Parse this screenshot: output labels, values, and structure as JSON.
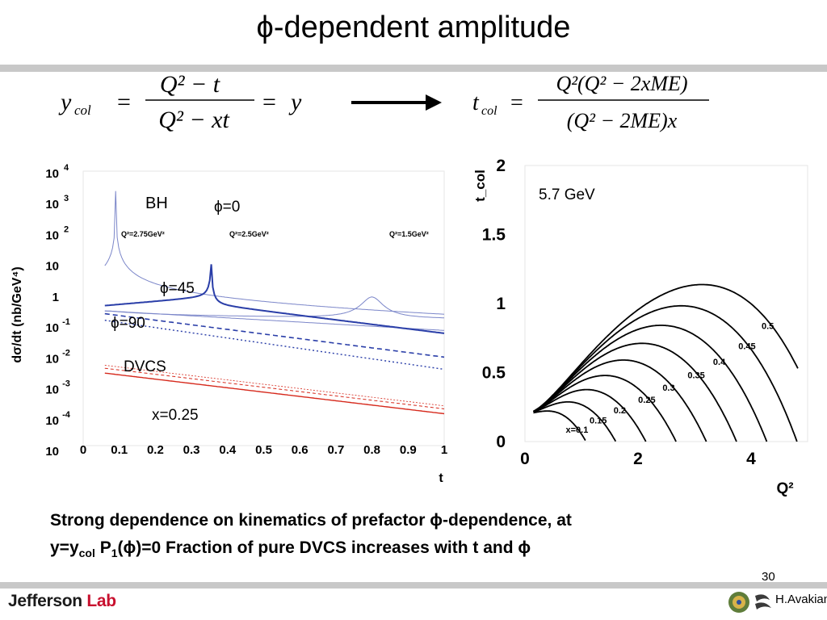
{
  "title": "ϕ-dependent amplitude",
  "equations": {
    "left": {
      "lhs": "y",
      "lhs_sub": "col",
      "num": "Q² − t",
      "den": "Q² − xt",
      "rhs": "y"
    },
    "right": {
      "lhs": "t",
      "lhs_sub": "col",
      "num": "Q²(Q² − 2xME)",
      "den": "(Q² − 2ME)x"
    }
  },
  "chart_data": [
    {
      "type": "line",
      "xlabel": "t",
      "ylabel": "dσ/dt (nb/GeV⁴)",
      "xlim": [
        0,
        1
      ],
      "ylim": [
        0.0001,
        10000
      ],
      "yscale": "log",
      "xticks": [
        "0",
        "0.1",
        "0.2",
        "0.3",
        "0.4",
        "0.5",
        "0.6",
        "0.7",
        "0.8",
        "0.9",
        "1"
      ],
      "yticks": [
        {
          "base": "10",
          "exp": "4"
        },
        {
          "base": "10",
          "exp": "3"
        },
        {
          "base": "10",
          "exp": "2"
        },
        {
          "base": "10",
          "exp": ""
        },
        {
          "base": "1",
          "exp": ""
        },
        {
          "base": "10",
          "exp": "-1"
        },
        {
          "base": "10",
          "exp": "-2"
        },
        {
          "base": "10",
          "exp": "-3"
        },
        {
          "base": "10",
          "exp": "-4"
        },
        {
          "base": "10",
          "exp": ""
        }
      ],
      "annotations": {
        "bh": "BH",
        "phi0": "ϕ=0",
        "phi45": "ϕ=45",
        "phi90": "ϕ=90",
        "dvcs": "DVCS",
        "x": "x=0.25",
        "q275": "Q²=2.75GeV²",
        "q25": "Q²=2.5GeV²",
        "q15": "Q²=1.5GeV²"
      },
      "colors": {
        "bh": "#7b86c9",
        "main": "#2a3ea8",
        "dvcs": "#d6291c"
      }
    },
    {
      "type": "line",
      "xlabel": "Q²",
      "ylabel": "t_col",
      "xlim": [
        0,
        5
      ],
      "ylim": [
        0,
        2
      ],
      "xticks": [
        "0",
        "2",
        "4"
      ],
      "yticks": [
        "0",
        "0.5",
        "1",
        "1.5",
        "2"
      ],
      "energy": "5.7 GeV",
      "series": [
        {
          "name": "x=0.1",
          "x": 0.1
        },
        {
          "name": "0.15",
          "x": 0.15
        },
        {
          "name": "0.2",
          "x": 0.2
        },
        {
          "name": "0.25",
          "x": 0.25
        },
        {
          "name": "0.3",
          "x": 0.3
        },
        {
          "name": "0.35",
          "x": 0.35
        },
        {
          "name": "0.4",
          "x": 0.4
        },
        {
          "name": "0.45",
          "x": 0.45
        },
        {
          "name": "0.5",
          "x": 0.5
        }
      ]
    }
  ],
  "caption": {
    "line1": "Strong dependence on kinematics of prefactor ϕ-dependence, at",
    "line2_a": "y=y",
    "line2_sub": "col",
    "line2_b": " P",
    "line2_sub2": "1",
    "line2_c": "(ϕ)=0 Fraction of pure DVCS increases with  t and ϕ"
  },
  "footer": {
    "logo_a": "Jefferson",
    "logo_b": " Lab",
    "page": "30",
    "author": "H.Avakian"
  }
}
